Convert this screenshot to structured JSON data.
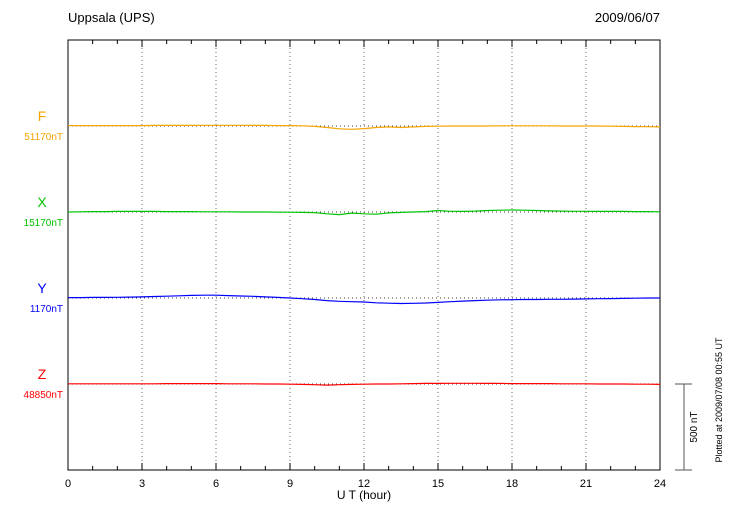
{
  "header": {
    "title": "Uppsala (UPS)",
    "date": "2009/06/07"
  },
  "axis": {
    "xlabel": "U T (hour)"
  },
  "scale_bar": {
    "label": "500 nT",
    "length_nT": 500
  },
  "footer_note": "Plotted at 2009/07/08 00:55 UT",
  "chart_data": {
    "type": "line",
    "title": "Uppsala (UPS)",
    "subtitle": "2009/06/07",
    "xlabel": "U T (hour)",
    "x_range": [
      0,
      24
    ],
    "x_ticks": [
      0,
      3,
      6,
      9,
      12,
      15,
      18,
      21,
      24
    ],
    "grid": "dotted vertical lines at 3h ticks; dotted horizontal line at each series baseline",
    "scale_nT": 500,
    "x_hours": [
      0,
      0.5,
      1,
      1.5,
      2,
      2.5,
      3,
      3.5,
      4,
      4.5,
      5,
      5.5,
      6,
      6.5,
      7,
      7.5,
      8,
      8.5,
      9,
      9.5,
      10,
      10.5,
      11,
      11.5,
      12,
      12.5,
      13,
      13.5,
      14,
      14.5,
      15,
      15.5,
      16,
      16.5,
      17,
      17.5,
      18,
      18.5,
      19,
      19.5,
      20,
      20.5,
      21,
      21.5,
      22,
      22.5,
      23,
      23.5,
      24
    ],
    "series": [
      {
        "label": "F",
        "baseline_label": "51170nT",
        "baseline_nT": 51170,
        "color": "#f5a400",
        "offsets_nT": [
          2,
          2,
          2,
          2,
          2,
          2,
          2,
          3,
          3,
          3,
          3,
          4,
          4,
          4,
          4,
          3,
          3,
          2,
          2,
          1,
          -2,
          -8,
          -15,
          -18,
          -14,
          -8,
          -5,
          -8,
          -5,
          -2,
          -1,
          0,
          0,
          0,
          0,
          1,
          1,
          1,
          1,
          1,
          0,
          0,
          0,
          0,
          -1,
          -2,
          -3,
          -4,
          -5
        ]
      },
      {
        "label": "X",
        "baseline_label": "15170nT",
        "baseline_nT": 15170,
        "color": "#00c400",
        "offsets_nT": [
          0,
          1,
          2,
          2,
          3,
          3,
          3,
          3,
          2,
          2,
          2,
          1,
          1,
          1,
          0,
          0,
          0,
          -1,
          -1,
          -2,
          -3,
          -10,
          -14,
          -6,
          -10,
          -12,
          -5,
          -2,
          0,
          2,
          8,
          4,
          3,
          5,
          8,
          10,
          11,
          10,
          8,
          6,
          5,
          4,
          4,
          3,
          3,
          3,
          2,
          2,
          1
        ]
      },
      {
        "label": "Y",
        "baseline_label": "1170nT",
        "baseline_nT": 1170,
        "color": "#0000ff",
        "offsets_nT": [
          2,
          2,
          3,
          3,
          4,
          5,
          6,
          8,
          10,
          12,
          14,
          15,
          15,
          13,
          11,
          9,
          6,
          3,
          0,
          -4,
          -8,
          -14,
          -18,
          -20,
          -22,
          -26,
          -28,
          -30,
          -29,
          -27,
          -24,
          -20,
          -17,
          -14,
          -12,
          -10,
          -9,
          -8,
          -8,
          -7,
          -7,
          -6,
          -5,
          -4,
          -3,
          -2,
          -1,
          0,
          0
        ]
      },
      {
        "label": "Z",
        "baseline_label": "48850nT",
        "baseline_nT": 48850,
        "color": "#ff0000",
        "offsets_nT": [
          1,
          1,
          1,
          1,
          1,
          1,
          1,
          1,
          2,
          2,
          2,
          2,
          2,
          1,
          1,
          1,
          0,
          0,
          -1,
          -2,
          -4,
          -6,
          -4,
          -2,
          -1,
          0,
          0,
          1,
          2,
          3,
          3,
          4,
          4,
          4,
          3,
          3,
          2,
          2,
          2,
          2,
          1,
          1,
          1,
          0,
          0,
          0,
          -1,
          -1,
          -2
        ]
      }
    ]
  }
}
